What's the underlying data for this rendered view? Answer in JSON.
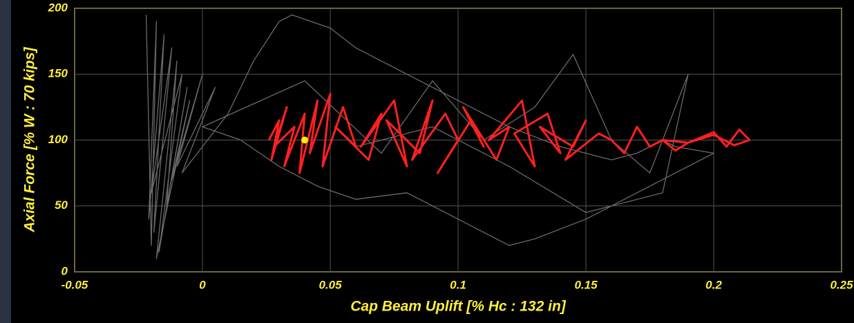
{
  "chart_data": {
    "type": "line",
    "x_label": "Cap Beam Uplift [% Hc : 132 in]",
    "y_label": "Axial Force [% W : 70 kips]",
    "xlim": [
      -0.05,
      0.25
    ],
    "xticks": [
      -0.05,
      0,
      0.05,
      0.1,
      0.15,
      0.2,
      0.25
    ],
    "ylim": [
      0,
      200
    ],
    "yticks": [
      0,
      50,
      100,
      150,
      200
    ],
    "grid": true,
    "series": [
      {
        "color": "#6a6a6a",
        "x": [
          -0.022,
          -0.02,
          -0.018,
          -0.021,
          -0.015,
          -0.019,
          -0.012,
          -0.02,
          -0.008,
          -0.017,
          -0.006,
          -0.014,
          -0.01,
          -0.018,
          -0.005,
          -0.012,
          0.0,
          -0.01,
          0.005,
          -0.008,
          0.01,
          0.02,
          0.03,
          0.035,
          0.05,
          0.06,
          0.08,
          0.1,
          0.12,
          0.14,
          0.16,
          0.17,
          0.18,
          0.185,
          0.2,
          0.17,
          0.15,
          0.13,
          0.12,
          0.1,
          0.08,
          0.06,
          0.045,
          0.03,
          0.015,
          0.0,
          0.04,
          0.07,
          0.09,
          0.11,
          0.13,
          0.145,
          0.16,
          0.175,
          0.19,
          0.18,
          0.15,
          0.12,
          0.09,
          0.06
        ],
        "values": [
          195,
          20,
          190,
          40,
          180,
          30,
          170,
          60,
          150,
          15,
          140,
          50,
          160,
          10,
          130,
          70,
          150,
          80,
          140,
          75,
          120,
          160,
          190,
          195,
          185,
          170,
          150,
          130,
          110,
          95,
          85,
          90,
          100,
          95,
          90,
          60,
          40,
          25,
          20,
          40,
          60,
          55,
          65,
          80,
          100,
          110,
          145,
          90,
          145,
          100,
          125,
          165,
          100,
          75,
          150,
          60,
          45,
          80,
          110,
          95
        ]
      },
      {
        "color": "#ff2020",
        "x": [
          0.026,
          0.03,
          0.027,
          0.033,
          0.028,
          0.036,
          0.032,
          0.04,
          0.038,
          0.045,
          0.042,
          0.05,
          0.047,
          0.055,
          0.06,
          0.052,
          0.065,
          0.07,
          0.062,
          0.075,
          0.08,
          0.072,
          0.085,
          0.09,
          0.082,
          0.095,
          0.1,
          0.092,
          0.105,
          0.11,
          0.102,
          0.115,
          0.12,
          0.112,
          0.125,
          0.13,
          0.122,
          0.135,
          0.14,
          0.132,
          0.145,
          0.15,
          0.142,
          0.155,
          0.16,
          0.165,
          0.17,
          0.175,
          0.18,
          0.185,
          0.19,
          0.195,
          0.2,
          0.205,
          0.21,
          0.214,
          0.208,
          0.2,
          0.19,
          0.18
        ],
        "values": [
          100,
          115,
          85,
          125,
          95,
          110,
          80,
          120,
          75,
          130,
          90,
          135,
          80,
          125,
          95,
          110,
          85,
          120,
          95,
          130,
          80,
          115,
          90,
          130,
          85,
          120,
          100,
          75,
          115,
          95,
          125,
          85,
          110,
          100,
          130,
          80,
          105,
          120,
          90,
          110,
          95,
          115,
          85,
          105,
          100,
          90,
          110,
          95,
          100,
          92,
          98,
          102,
          106,
          95,
          108,
          100,
          96,
          104,
          98,
          100
        ]
      }
    ],
    "marker": {
      "x": 0.04,
      "y": 100,
      "color": "#ffef00"
    }
  }
}
